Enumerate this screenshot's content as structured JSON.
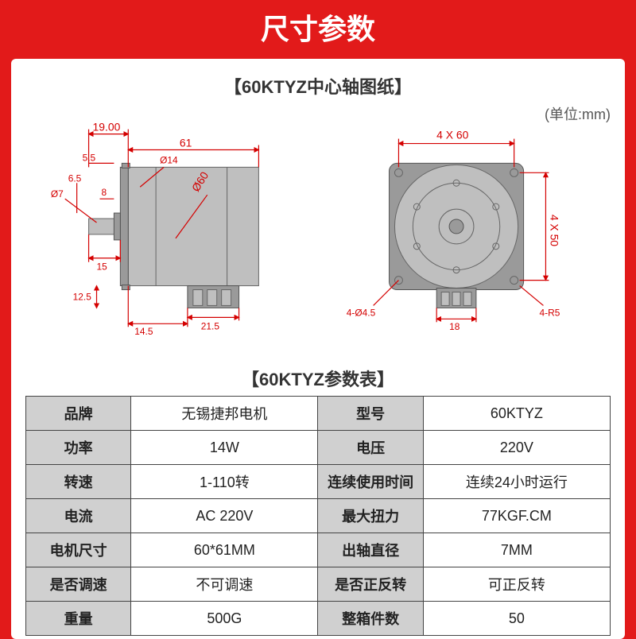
{
  "header": {
    "title": "尺寸参数"
  },
  "diagram": {
    "title_prefix": "【",
    "title": "60KTYZ中心轴图纸",
    "title_suffix": "】",
    "unit_note": "(单位:mm)",
    "colors": {
      "dim": "#d40000",
      "body_fill": "#bfbfbf",
      "body_dark": "#9a9a9a",
      "body_stroke": "#666666",
      "background": "#ffffff",
      "page_bg": "#e21a1a"
    },
    "left_view": {
      "dims": {
        "top_offset": "19.00",
        "body_length": "61",
        "shaft_step": "5.5",
        "shaft_flat": "6.5",
        "shaft_dia": "Ø7",
        "shaft_inner": "8",
        "flange_dia": "Ø14",
        "motor_dia": "Ø60",
        "shaft_len": "15",
        "conn_height": "12.5",
        "conn_off": "14.5",
        "conn_width": "21.5"
      }
    },
    "front_view": {
      "dims": {
        "holes_x": "4 X 60",
        "holes_y": "4 X 50",
        "hole_dia": "4-Ø4.5",
        "corner_r": "4-R5",
        "conn_w": "18"
      }
    }
  },
  "spec_table": {
    "title_prefix": "【",
    "title": "60KTYZ参数表",
    "title_suffix": "】",
    "rows": [
      {
        "h1": "品牌",
        "v1": "无锡捷邦电机",
        "h2": "型号",
        "v2": "60KTYZ"
      },
      {
        "h1": "功率",
        "v1": "14W",
        "h2": "电压",
        "v2": "220V"
      },
      {
        "h1": "转速",
        "v1": "1-110转",
        "h2": "连续使用时间",
        "v2": "连续24小时运行"
      },
      {
        "h1": "电流",
        "v1": "AC 220V",
        "h2": "最大扭力",
        "v2": "77KGF.CM"
      },
      {
        "h1": "电机尺寸",
        "v1": "60*61MM",
        "h2": "出轴直径",
        "v2": "7MM"
      },
      {
        "h1": "是否调速",
        "v1": "不可调速",
        "h2": "是否正反转",
        "v2": "可正反转"
      },
      {
        "h1": "重量",
        "v1": "500G",
        "h2": "整箱件数",
        "v2": "50"
      }
    ]
  }
}
